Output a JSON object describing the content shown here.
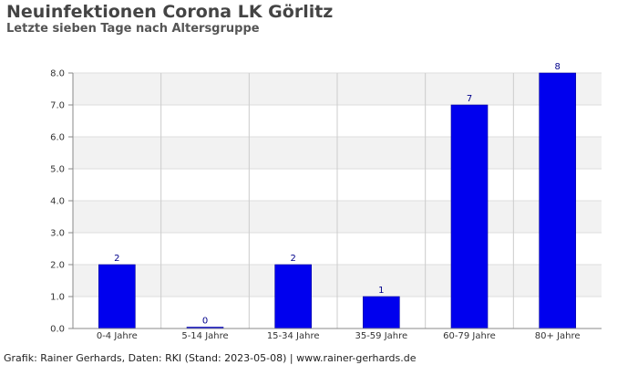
{
  "chart_data": {
    "type": "bar",
    "title": "Neuinfektionen Corona LK Görlitz",
    "subtitle": "Letzte sieben Tage nach Altersgruppe",
    "categories": [
      "0-4 Jahre",
      "5-14 Jahre",
      "15-34 Jahre",
      "35-59 Jahre",
      "60-79 Jahre",
      "80+ Jahre"
    ],
    "values": [
      2,
      0,
      2,
      1,
      7,
      8
    ],
    "data_labels": [
      "2",
      "0",
      "2",
      "1",
      "7",
      "8"
    ],
    "yticks": [
      "0.0",
      "1.0",
      "2.0",
      "3.0",
      "4.0",
      "5.0",
      "6.0",
      "7.0",
      "8.0"
    ],
    "ylim": [
      0,
      8
    ],
    "xlabel": "",
    "ylabel": "",
    "grid": true,
    "bar_color": "#0000ee",
    "band_color": "#f2f2f2"
  },
  "footer": "Grafik: Rainer Gerhards, Daten: RKI (Stand: 2023-05-08) | www.rainer-gerhards.de"
}
